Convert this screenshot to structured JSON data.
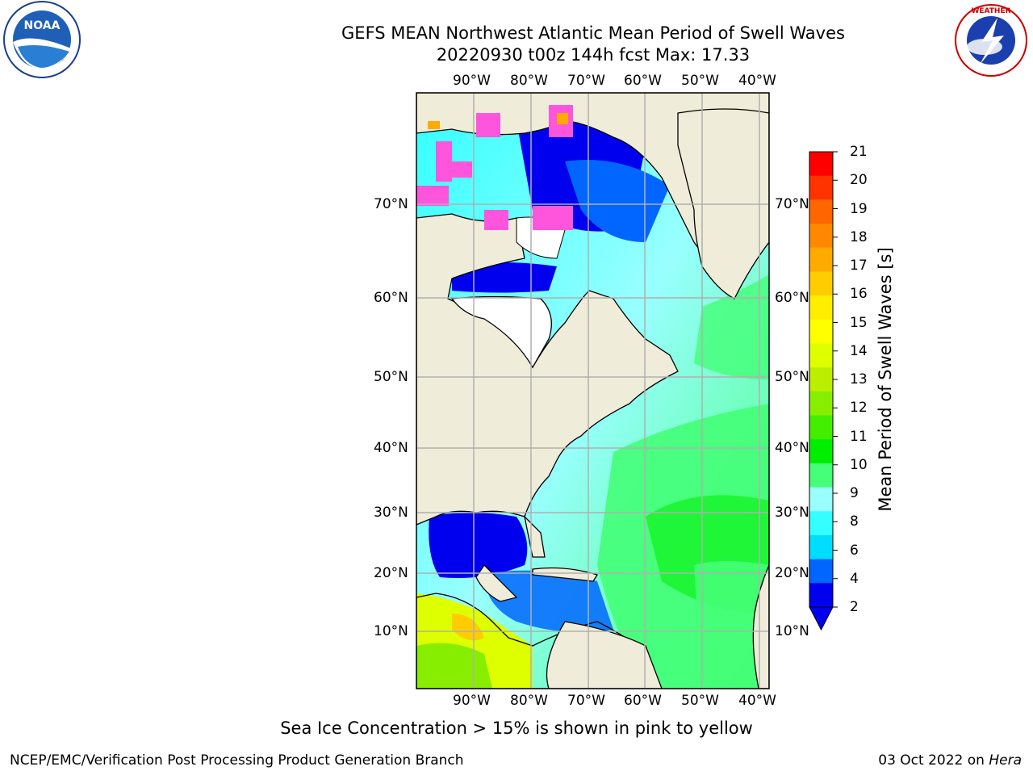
{
  "title": {
    "line1": "GEFS MEAN Northwest Atlantic Mean Period of Swell Waves",
    "line2": "20220930 t00z 144h fcst   Max: 17.33"
  },
  "map": {
    "lon_labels": [
      "90°W",
      "80°W",
      "70°W",
      "60°W",
      "50°W",
      "40°W"
    ],
    "lat_labels": [
      "70°N",
      "60°N",
      "50°N",
      "40°N",
      "30°N",
      "20°N",
      "10°N"
    ],
    "colors": {
      "land": "#efedd9",
      "ice_free": "#ffffff",
      "grid": "#b0b0b0",
      "ice_pink": "#ff55dd"
    }
  },
  "colorbar": {
    "title": "Mean Period of Swell Waves [s]",
    "ticks": [
      "21",
      "20",
      "19",
      "18",
      "17",
      "16",
      "15",
      "14",
      "13",
      "12",
      "11",
      "10",
      "9",
      "8",
      "6",
      "4",
      "2"
    ],
    "colors": [
      "#0000ee",
      "#0066ff",
      "#00ddff",
      "#33ffff",
      "#99ffff",
      "#44ff77",
      "#00ee00",
      "#44ee00",
      "#88ee00",
      "#bbee00",
      "#ddff00",
      "#ffff00",
      "#ffee00",
      "#ffcc00",
      "#ffaa00",
      "#ff8800",
      "#ff6600",
      "#ff3300",
      "#ff0000"
    ]
  },
  "footnote": "Sea Ice Concentration > 15% is shown in pink to yellow",
  "credit": "NCEP/EMC/Verification Post Processing Product Generation Branch",
  "stamp": {
    "date": "03 Oct 2022 on",
    "host": "Hera"
  },
  "logos": {
    "left": "noaa-logo",
    "right": "nws-logo",
    "right_ring_text": "NATIONAL WEATHER SERVICE"
  }
}
